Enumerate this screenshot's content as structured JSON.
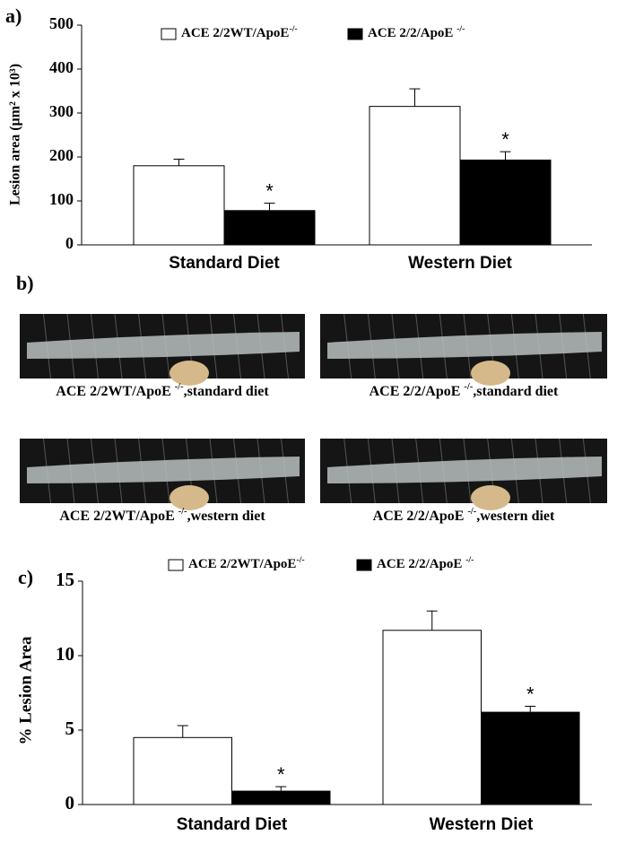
{
  "chart_data": [
    {
      "type": "bar",
      "panel": "a)",
      "ylabel": "Lesion area (µm² x 10³)",
      "categories": [
        "Standard Diet",
        "Western Diet"
      ],
      "series": [
        {
          "name": "ACE 2/2WT/ApoE",
          "name_sup": "-/-",
          "color": "#ffffff",
          "values": [
            180,
            315
          ],
          "errors": [
            15,
            40
          ]
        },
        {
          "name": "ACE 2/2/ApoE ",
          "name_sup": "-/-",
          "color": "#000000",
          "values": [
            78,
            193
          ],
          "errors": [
            17,
            19
          ],
          "labels": [
            "*",
            "*"
          ]
        }
      ],
      "ylim": [
        0,
        500
      ],
      "yticks": [
        0,
        100,
        200,
        300,
        400,
        500
      ]
    },
    {
      "type": "bar",
      "panel": "c)",
      "ylabel": "% Lesion Area",
      "categories": [
        "Standard Diet",
        "Western Diet"
      ],
      "series": [
        {
          "name": "ACE 2/2WT/ApoE",
          "name_sup": "-/-",
          "color": "#ffffff",
          "values": [
            4.5,
            11.7
          ],
          "errors": [
            0.8,
            1.3
          ]
        },
        {
          "name": "ACE 2/2/ApoE ",
          "name_sup": "-/-",
          "color": "#000000",
          "values": [
            0.9,
            6.2
          ],
          "errors": [
            0.3,
            0.4
          ],
          "labels": [
            "*",
            "*"
          ]
        }
      ],
      "ylim": [
        0,
        15
      ],
      "yticks": [
        0,
        5,
        10,
        15
      ]
    }
  ],
  "panel_b": {
    "label": "b)",
    "images": [
      {
        "prefix": "ACE 2/2WT/ApoE ",
        "sup": "-/-",
        "suffix": ",standard diet"
      },
      {
        "prefix": "ACE 2/2/ApoE ",
        "sup": "-/-",
        "suffix": ",standard diet"
      },
      {
        "prefix": "ACE 2/2WT/ApoE ",
        "sup": "-/-",
        "suffix": ",western diet"
      },
      {
        "prefix": "ACE 2/2/ApoE ",
        "sup": "-/-",
        "suffix": ",western diet"
      }
    ]
  }
}
